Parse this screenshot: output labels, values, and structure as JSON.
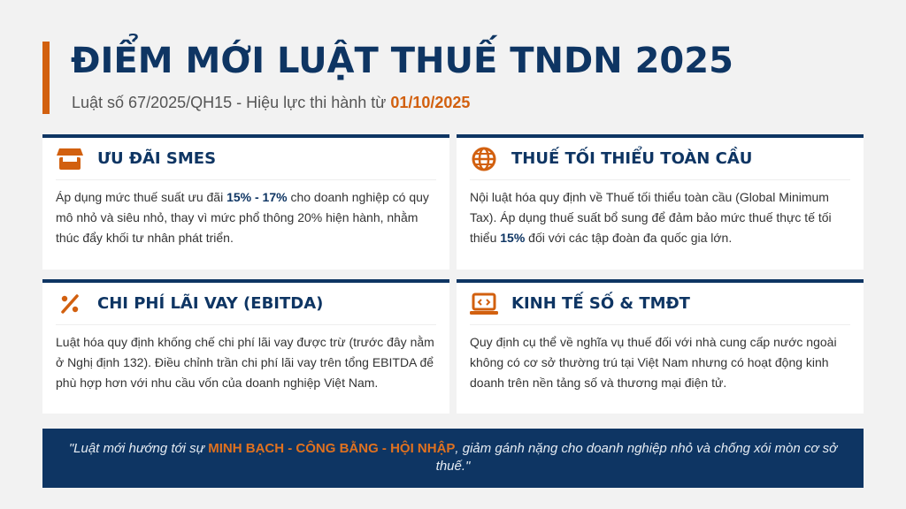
{
  "header": {
    "title": "ĐIỂM MỚI LUẬT THUẾ TNDN 2025",
    "subtitle_prefix": "Luật số 67/2025/QH15 - Hiệu lực thi hành từ ",
    "subtitle_date": "01/10/2025"
  },
  "colors": {
    "navy": "#0e3563",
    "orange": "#d2600f",
    "background": "#f2f2f2"
  },
  "cards": [
    {
      "icon": "store-icon",
      "title": "ƯU ĐÃI SMES",
      "text_before": "Áp dụng mức thuế suất ưu đãi ",
      "highlight": "15% - 17%",
      "text_after": " cho doanh nghiệp có quy mô nhỏ và siêu nhỏ, thay vì mức phổ thông 20% hiện hành, nhằm thúc đẩy khối tư nhân phát triển."
    },
    {
      "icon": "globe-icon",
      "title": "THUẾ TỐI THIỂU TOÀN CẦU",
      "text_before": "Nội luật hóa quy định về Thuế tối thiểu toàn cầu (Global Minimum Tax). Áp dụng thuế suất bổ sung để đảm bảo mức thuế thực tế tối thiểu ",
      "highlight": "15%",
      "text_after": " đối với các tập đoàn đa quốc gia lớn."
    },
    {
      "icon": "percent-icon",
      "title": "CHI PHÍ LÃI VAY (EBITDA)",
      "text_before": "Luật hóa quy định khống chế chi phí lãi vay được trừ (trước đây nằm ở Nghị định 132). Điều chỉnh trần chi phí lãi vay trên tổng EBITDA để phù hợp hơn với nhu cầu vốn của doanh nghiệp Việt Nam.",
      "highlight": "",
      "text_after": ""
    },
    {
      "icon": "laptop-code-icon",
      "title": "KINH TẾ SỐ & TMĐT",
      "text_before": "Quy định cụ thể về nghĩa vụ thuế đối với nhà cung cấp nước ngoài không có cơ sở thường trú tại Việt Nam nhưng có hoạt động kinh doanh trên nền tảng số và thương mại điện tử.",
      "highlight": "",
      "text_after": ""
    }
  ],
  "quote": {
    "before": "\"Luật mới hướng tới sự ",
    "highlight": "MINH BẠCH - CÔNG BẰNG - HỘI NHẬP",
    "after": ", giảm gánh nặng cho doanh nghiệp nhỏ và chống xói mòn cơ sở thuế.\""
  }
}
